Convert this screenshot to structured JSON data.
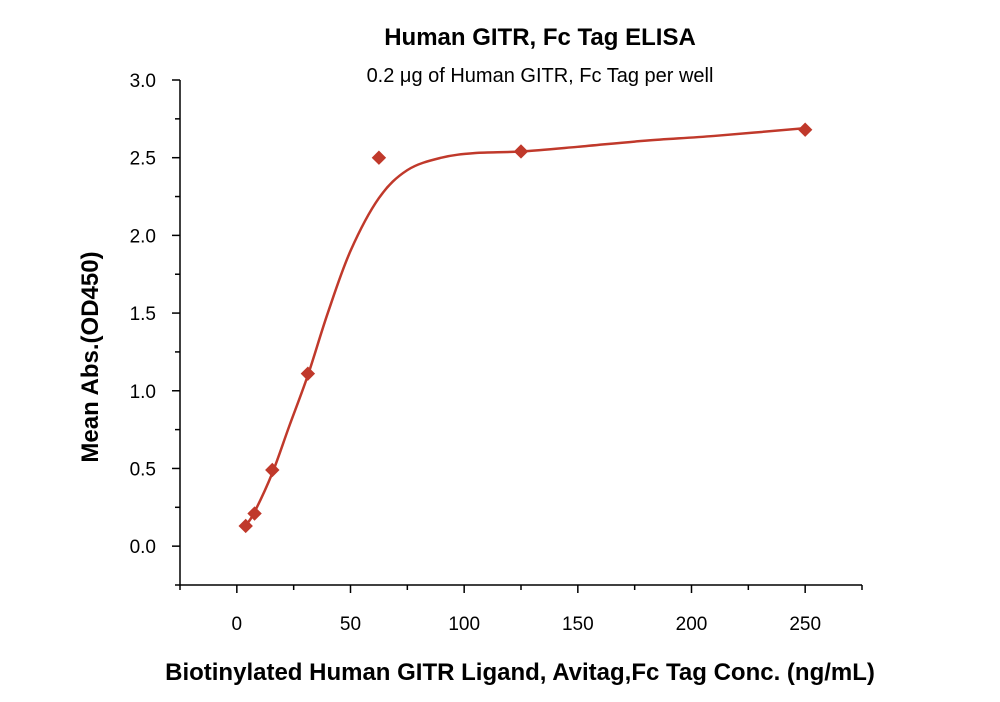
{
  "chart_data": {
    "type": "scatter",
    "title": "Human GITR, Fc Tag ELISA",
    "subtitle": "0.2 μg of Human GITR, Fc Tag per well",
    "xlabel": "Biotinylated Human GITR Ligand, Avitag,Fc Tag Conc. (ng/mL)",
    "ylabel": "Mean Abs.(OD450)",
    "xlim": [
      -25,
      275
    ],
    "ylim": [
      -0.25,
      3.0
    ],
    "x_ticks": [
      0,
      50,
      100,
      150,
      200,
      250
    ],
    "x_tick_labels": [
      "0",
      "50",
      "100",
      "150",
      "200",
      "250"
    ],
    "x_minor_ticks": [
      -25,
      25,
      75,
      125,
      175,
      225,
      275
    ],
    "y_ticks": [
      0.0,
      0.5,
      1.0,
      1.5,
      2.0,
      2.5,
      3.0
    ],
    "y_tick_labels": [
      "0.0",
      "0.5",
      "1.0",
      "1.5",
      "2.0",
      "2.5",
      "3.0"
    ],
    "y_minor_ticks": [
      -0.25,
      0.25,
      0.75,
      1.25,
      1.75,
      2.25,
      2.75
    ],
    "grid": false,
    "series": [
      {
        "name": "Mean Abs.(OD450)",
        "marker": "diamond",
        "color": "#c0392b",
        "x": [
          3.9,
          7.8,
          15.6,
          31.25,
          62.5,
          125,
          250
        ],
        "y": [
          0.13,
          0.21,
          0.49,
          1.11,
          2.5,
          2.54,
          2.68
        ]
      }
    ],
    "fit_curve": {
      "name": "fitted curve",
      "color": "#c0392b",
      "x": [
        3.9,
        7.8,
        15.6,
        23,
        31.25,
        40,
        50,
        62.5,
        75,
        90,
        105,
        125,
        150,
        180,
        210,
        250
      ],
      "y": [
        0.13,
        0.22,
        0.47,
        0.77,
        1.1,
        1.5,
        1.9,
        2.24,
        2.42,
        2.5,
        2.53,
        2.54,
        2.57,
        2.61,
        2.64,
        2.69
      ]
    }
  }
}
